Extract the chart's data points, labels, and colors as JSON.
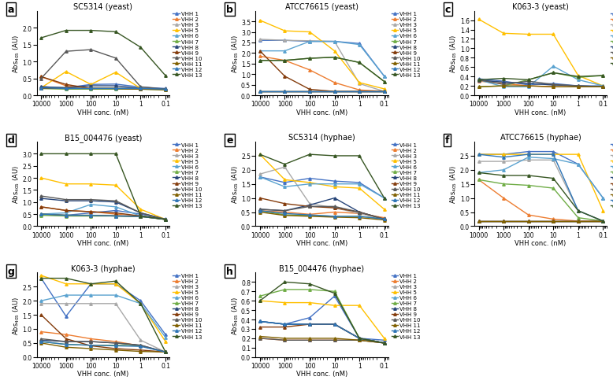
{
  "x_vals": [
    10000,
    1000,
    100,
    10,
    1,
    0.1
  ],
  "vhh_colors": {
    "VHH 1": "#4472C4",
    "VHH 2": "#ED7D31",
    "VHH 3": "#A9A9A9",
    "VHH 5": "#FFC000",
    "VHH 6": "#5BA3D0",
    "VHH 7": "#70AD47",
    "VHH 8": "#264478",
    "VHH 9": "#843C0C",
    "VHH 10": "#595959",
    "VHH 11": "#806000",
    "VHH 12": "#2E75B6",
    "VHH 13": "#375623"
  },
  "panels": [
    {
      "label": "a",
      "title": "SC5314 (yeast)",
      "series": {
        "VHH 1": [
          0.25,
          0.22,
          0.32,
          0.33,
          0.24,
          0.2
        ],
        "VHH 2": [
          0.55,
          0.28,
          0.2,
          0.22,
          0.2,
          0.18
        ],
        "VHH 3": [
          0.25,
          0.22,
          0.22,
          0.22,
          0.2,
          0.18
        ],
        "VHH 5": [
          0.22,
          0.7,
          0.32,
          0.68,
          0.2,
          0.18
        ],
        "VHH 6": [
          0.22,
          0.2,
          0.2,
          0.2,
          0.2,
          0.18
        ],
        "VHH 7": [
          0.2,
          0.18,
          0.18,
          0.18,
          0.18,
          0.16
        ],
        "VHH 8": [
          0.25,
          0.22,
          0.28,
          0.28,
          0.2,
          0.18
        ],
        "VHH 9": [
          0.55,
          0.32,
          0.2,
          0.2,
          0.18,
          0.18
        ],
        "VHH 10": [
          0.5,
          1.3,
          1.35,
          1.1,
          0.25,
          0.18
        ],
        "VHH 11": [
          0.2,
          0.2,
          0.2,
          0.2,
          0.18,
          0.16
        ],
        "VHH 12": [
          0.22,
          0.2,
          0.2,
          0.2,
          0.2,
          0.18
        ],
        "VHH 13": [
          1.7,
          1.92,
          1.92,
          1.88,
          1.42,
          0.58
        ]
      },
      "ylim": [
        0,
        2.5
      ],
      "yticks": [
        0,
        0.5,
        1.0,
        1.5,
        2.0
      ]
    },
    {
      "label": "b",
      "title": "ATCC76615 (yeast)",
      "series": {
        "VHH 1": [
          2.6,
          2.6,
          2.55,
          2.55,
          2.45,
          0.9
        ],
        "VHH 2": [
          1.85,
          1.65,
          1.2,
          0.6,
          0.25,
          0.18
        ],
        "VHH 3": [
          2.65,
          2.6,
          2.58,
          2.55,
          0.55,
          0.18
        ],
        "VHH 5": [
          3.55,
          3.05,
          3.0,
          2.1,
          0.6,
          0.3
        ],
        "VHH 6": [
          2.1,
          2.1,
          2.55,
          2.55,
          2.4,
          0.9
        ],
        "VHH 7": [
          1.65,
          1.65,
          1.75,
          1.8,
          1.55,
          0.65
        ],
        "VHH 8": [
          0.18,
          0.18,
          0.18,
          0.18,
          0.18,
          0.18
        ],
        "VHH 9": [
          2.1,
          0.9,
          0.28,
          0.18,
          0.18,
          0.18
        ],
        "VHH 10": [
          0.18,
          0.18,
          0.18,
          0.18,
          0.18,
          0.18
        ],
        "VHH 11": [
          0.18,
          0.18,
          0.18,
          0.18,
          0.18,
          0.18
        ],
        "VHH 12": [
          0.18,
          0.18,
          0.18,
          0.18,
          0.18,
          0.18
        ],
        "VHH 13": [
          1.65,
          1.65,
          1.75,
          1.8,
          1.55,
          0.65
        ]
      },
      "ylim": [
        0,
        4.0
      ],
      "yticks": [
        0,
        0.5,
        1.0,
        1.5,
        2.0,
        2.5,
        3.0,
        3.5
      ]
    },
    {
      "label": "c",
      "title": "K063-3 (yeast)",
      "series": {
        "VHH 1": [
          0.35,
          0.3,
          0.22,
          0.25,
          0.2,
          0.2
        ],
        "VHH 2": [
          0.3,
          0.25,
          0.2,
          0.18,
          0.18,
          0.18
        ],
        "VHH 3": [
          0.32,
          0.28,
          0.25,
          0.22,
          0.2,
          0.18
        ],
        "VHH 5": [
          1.62,
          1.32,
          1.3,
          1.3,
          0.42,
          0.2
        ],
        "VHH 6": [
          0.33,
          0.18,
          0.18,
          0.62,
          0.33,
          0.2
        ],
        "VHH 7": [
          0.18,
          0.2,
          0.33,
          0.48,
          0.38,
          0.42
        ],
        "VHH 8": [
          0.32,
          0.28,
          0.25,
          0.22,
          0.2,
          0.18
        ],
        "VHH 10": [
          0.33,
          0.23,
          0.3,
          0.23,
          0.2,
          0.18
        ],
        "VHH 11": [
          0.18,
          0.2,
          0.2,
          0.18,
          0.18,
          0.18
        ],
        "VHH 13": [
          0.33,
          0.36,
          0.33,
          0.48,
          0.4,
          0.42
        ]
      },
      "ylim": [
        0,
        1.8
      ],
      "yticks": [
        0,
        0.2,
        0.4,
        0.6,
        0.8,
        1.0,
        1.2,
        1.4,
        1.6
      ]
    },
    {
      "label": "d",
      "title": "B15_004476 (yeast)",
      "series": {
        "VHH 1": [
          0.5,
          0.45,
          0.55,
          0.65,
          0.5,
          0.3
        ],
        "VHH 2": [
          0.8,
          0.65,
          0.6,
          0.5,
          0.4,
          0.28
        ],
        "VHH 3": [
          0.5,
          0.45,
          0.45,
          0.45,
          0.42,
          0.28
        ],
        "VHH 5": [
          2.0,
          1.75,
          1.75,
          1.7,
          0.7,
          0.28
        ],
        "VHH 6": [
          0.5,
          0.55,
          0.9,
          0.8,
          0.42,
          0.28
        ],
        "VHH 7": [
          0.45,
          0.42,
          0.42,
          0.42,
          0.4,
          0.28
        ],
        "VHH 8": [
          1.15,
          1.05,
          1.05,
          1.0,
          0.55,
          0.28
        ],
        "VHH 9": [
          0.8,
          0.65,
          0.6,
          0.55,
          0.42,
          0.28
        ],
        "VHH 10": [
          1.25,
          1.1,
          1.1,
          1.05,
          0.55,
          0.28
        ],
        "VHH 11": [
          0.5,
          0.45,
          0.45,
          0.42,
          0.4,
          0.28
        ],
        "VHH 12": [
          0.5,
          0.45,
          0.45,
          0.42,
          0.4,
          0.28
        ],
        "VHH 13": [
          3.0,
          3.0,
          3.0,
          3.0,
          0.42,
          0.28
        ]
      },
      "ylim": [
        0,
        3.5
      ],
      "yticks": [
        0,
        0.5,
        1.0,
        1.5,
        2.0,
        2.5,
        3.0
      ]
    },
    {
      "label": "e",
      "title": "SC5314 (hyphae)",
      "series": {
        "VHH 1": [
          1.75,
          1.55,
          1.7,
          1.6,
          1.55,
          1.0
        ],
        "VHH 2": [
          0.55,
          0.5,
          0.42,
          0.5,
          0.45,
          0.3
        ],
        "VHH 3": [
          1.85,
          2.1,
          0.8,
          0.65,
          0.45,
          0.25
        ],
        "VHH 5": [
          2.55,
          1.65,
          1.55,
          1.4,
          1.35,
          0.6
        ],
        "VHH 6": [
          1.75,
          1.4,
          1.5,
          1.5,
          1.5,
          1.0
        ],
        "VHH 7": [
          0.55,
          0.4,
          0.38,
          0.35,
          0.35,
          0.25
        ],
        "VHH 8": [
          0.6,
          0.55,
          0.75,
          1.0,
          0.5,
          0.25
        ],
        "VHH 9": [
          1.0,
          0.8,
          0.7,
          0.65,
          0.5,
          0.25
        ],
        "VHH 10": [
          0.6,
          0.55,
          0.7,
          0.7,
          0.5,
          0.25
        ],
        "VHH 11": [
          0.5,
          0.38,
          0.35,
          0.32,
          0.3,
          0.22
        ],
        "VHH 12": [
          0.55,
          0.45,
          0.4,
          0.35,
          0.35,
          0.25
        ],
        "VHH 13": [
          2.55,
          2.2,
          2.55,
          2.5,
          2.5,
          1.0
        ]
      },
      "ylim": [
        0,
        3.0
      ],
      "yticks": [
        0,
        0.5,
        1.0,
        1.5,
        2.0,
        2.5
      ]
    },
    {
      "label": "f",
      "title": "ATCC76615 (hyphae)",
      "series": {
        "VHH 1": [
          2.55,
          2.55,
          2.65,
          2.65,
          2.2,
          1.0
        ],
        "VHH 2": [
          1.65,
          1.0,
          0.4,
          0.25,
          0.18,
          0.18
        ],
        "VHH 3": [
          2.3,
          2.3,
          2.35,
          2.35,
          0.55,
          0.18
        ],
        "VHH 5": [
          2.55,
          2.55,
          2.55,
          2.55,
          2.55,
          0.55
        ],
        "VHH 6": [
          1.9,
          2.0,
          2.45,
          2.4,
          2.2,
          1.0
        ],
        "VHH 7": [
          1.65,
          1.5,
          1.45,
          1.35,
          0.3,
          0.18
        ],
        "VHH 8": [
          0.18,
          0.18,
          0.18,
          0.18,
          0.18,
          0.18
        ],
        "VHH 9": [
          0.18,
          0.18,
          0.18,
          0.18,
          0.18,
          0.18
        ],
        "VHH 10": [
          0.18,
          0.18,
          0.18,
          0.18,
          0.18,
          0.18
        ],
        "VHH 11": [
          0.18,
          0.18,
          0.18,
          0.18,
          0.18,
          0.18
        ],
        "VHH 12": [
          2.55,
          2.45,
          2.55,
          2.55,
          0.55,
          0.18
        ],
        "VHH 13": [
          1.9,
          1.8,
          1.8,
          1.7,
          0.55,
          0.18
        ]
      },
      "ylim": [
        0,
        3.0
      ],
      "yticks": [
        0,
        0.5,
        1.0,
        1.5,
        2.0,
        2.5
      ]
    },
    {
      "label": "g",
      "title": "K063-3 (hyphae)",
      "series": {
        "VHH 1": [
          2.8,
          1.45,
          2.6,
          2.6,
          2.0,
          0.8
        ],
        "VHH 2": [
          0.9,
          0.8,
          0.65,
          0.55,
          0.4,
          0.18
        ],
        "VHH 3": [
          1.9,
          1.9,
          1.9,
          1.9,
          0.6,
          0.18
        ],
        "VHH 5": [
          2.9,
          2.6,
          2.6,
          2.6,
          1.9,
          0.55
        ],
        "VHH 6": [
          2.0,
          2.2,
          2.2,
          2.2,
          1.9,
          0.7
        ],
        "VHH 7": [
          0.55,
          0.45,
          0.42,
          0.42,
          0.4,
          0.18
        ],
        "VHH 8": [
          0.6,
          0.55,
          0.55,
          0.5,
          0.42,
          0.18
        ],
        "VHH 9": [
          1.5,
          0.65,
          0.4,
          0.3,
          0.25,
          0.18
        ],
        "VHH 10": [
          0.65,
          0.55,
          0.55,
          0.5,
          0.42,
          0.18
        ],
        "VHH 11": [
          0.5,
          0.35,
          0.3,
          0.25,
          0.2,
          0.18
        ],
        "VHH 12": [
          0.55,
          0.45,
          0.42,
          0.4,
          0.38,
          0.18
        ],
        "VHH 13": [
          2.8,
          2.8,
          2.6,
          2.7,
          1.9,
          0.18
        ]
      },
      "ylim": [
        0,
        3.0
      ],
      "yticks": [
        0,
        0.5,
        1.0,
        1.5,
        2.0,
        2.5
      ]
    },
    {
      "label": "h",
      "title": "B15_004476 (hyphae)",
      "series": {
        "VHH 1": [
          0.38,
          0.35,
          0.42,
          0.65,
          0.2,
          0.18
        ],
        "VHH 2": [
          0.2,
          0.18,
          0.18,
          0.18,
          0.18,
          0.15
        ],
        "VHH 3": [
          0.38,
          0.35,
          0.35,
          0.35,
          0.2,
          0.15
        ],
        "VHH 5": [
          0.6,
          0.58,
          0.58,
          0.55,
          0.55,
          0.2
        ],
        "VHH 6": [
          0.38,
          0.35,
          0.35,
          0.35,
          0.2,
          0.15
        ],
        "VHH 7": [
          0.65,
          0.72,
          0.72,
          0.7,
          0.2,
          0.15
        ],
        "VHH 8": [
          0.38,
          0.35,
          0.35,
          0.35,
          0.2,
          0.15
        ],
        "VHH 9": [
          0.32,
          0.32,
          0.35,
          0.35,
          0.2,
          0.15
        ],
        "VHH 10": [
          0.2,
          0.18,
          0.18,
          0.18,
          0.18,
          0.15
        ],
        "VHH 11": [
          0.22,
          0.2,
          0.2,
          0.2,
          0.18,
          0.15
        ],
        "VHH 12": [
          0.38,
          0.35,
          0.35,
          0.35,
          0.2,
          0.15
        ],
        "VHH 13": [
          0.6,
          0.8,
          0.78,
          0.68,
          0.2,
          0.15
        ]
      },
      "ylim": [
        0,
        0.9
      ],
      "yticks": [
        0,
        0.1,
        0.2,
        0.3,
        0.4,
        0.5,
        0.6,
        0.7,
        0.8
      ]
    }
  ],
  "background_color": "#f0f0f0",
  "box_color": "black",
  "title_fontsize": 7,
  "label_fontsize": 6,
  "legend_fontsize": 5,
  "linewidth": 1.0,
  "markersize": 2.5
}
